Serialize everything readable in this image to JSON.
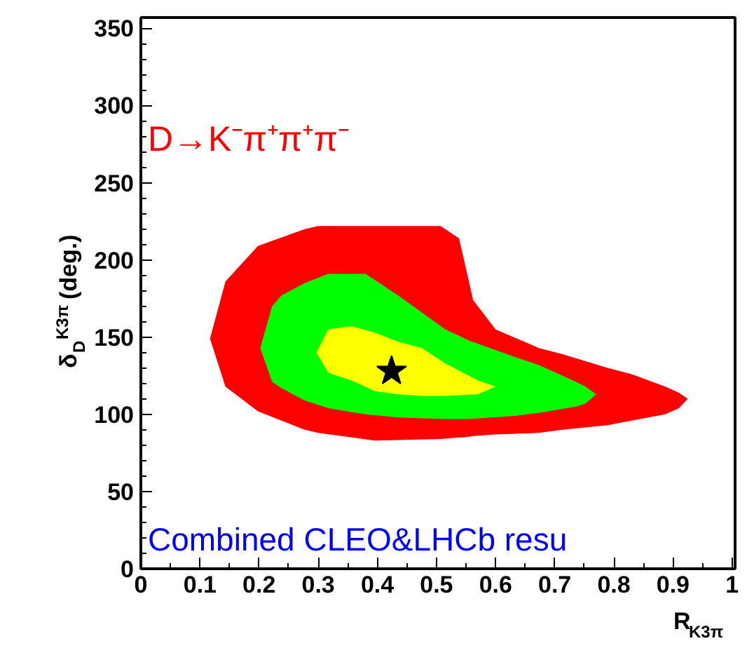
{
  "chart_data": {
    "type": "area",
    "xlabel": "R$_{K3π}$",
    "ylabel": "δ$_{D}$$^{K3π}$ (deg.)",
    "xlim": [
      0,
      1.005
    ],
    "ylim": [
      0,
      357
    ],
    "xticks": [
      0,
      0.1,
      0.2,
      0.3,
      0.4,
      0.5,
      0.6,
      0.7,
      0.8,
      0.9,
      1
    ],
    "yticks": [
      0,
      50,
      100,
      150,
      200,
      250,
      300,
      350
    ],
    "grid": false,
    "series": [
      {
        "color": "#ff0000",
        "x": [
          0.117,
          0.143,
          0.198,
          0.277,
          0.3,
          0.396,
          0.507,
          0.538,
          0.546,
          0.562,
          0.6,
          0.673,
          0.713,
          0.79,
          0.83,
          0.887,
          0.91,
          0.925
        ],
        "values": [
          null,
          null,
          null,
          null,
          null,
          null,
          null,
          null,
          null,
          null,
          null,
          null,
          null,
          null,
          null,
          null,
          null,
          null
        ],
        "upper": [
          149,
          186,
          209,
          220,
          222,
          222,
          222,
          214,
          201,
          174,
          155,
          143,
          139,
          130,
          126,
          118,
          114,
          110
        ],
        "lower": [
          149,
          118,
          102,
          90,
          88,
          83,
          84,
          85,
          85,
          86,
          87,
          88,
          90,
          93,
          96,
          100,
          104,
          110
        ]
      },
      {
        "color": "#00ff00",
        "x": [
          0.202,
          0.222,
          0.238,
          0.277,
          0.317,
          0.38,
          0.435,
          0.515,
          0.554,
          0.633,
          0.673,
          0.736,
          0.752,
          0.77
        ],
        "values": [
          null,
          null,
          null,
          null,
          null,
          null,
          null,
          null,
          null,
          null,
          null,
          null,
          null,
          null
        ],
        "upper": [
          143,
          170,
          177,
          185,
          191,
          191,
          177,
          155,
          148,
          137,
          132,
          121,
          118,
          113
        ],
        "lower": [
          143,
          121,
          117,
          109,
          104,
          100,
          98,
          97,
          97,
          99,
          101,
          105,
          107,
          113
        ]
      },
      {
        "color": "#ffff00",
        "x": [
          0.297,
          0.317,
          0.356,
          0.396,
          0.435,
          0.475,
          0.515,
          0.57,
          0.6
        ],
        "values": [
          null,
          null,
          null,
          null,
          null,
          null,
          null,
          null,
          null
        ],
        "upper": [
          140,
          155,
          157,
          153,
          147,
          143,
          133,
          122,
          118
        ],
        "lower": [
          140,
          127,
          122,
          115,
          113,
          112,
          112,
          113,
          118
        ]
      },
      {
        "type": "scatter",
        "color": "#000000",
        "marker": "star",
        "x": [
          0.424
        ],
        "values": [
          128
        ]
      }
    ],
    "annotations": [
      "D→K⁻π⁺π⁺π⁻",
      "Combined CLEO&LHCb resu"
    ]
  }
}
